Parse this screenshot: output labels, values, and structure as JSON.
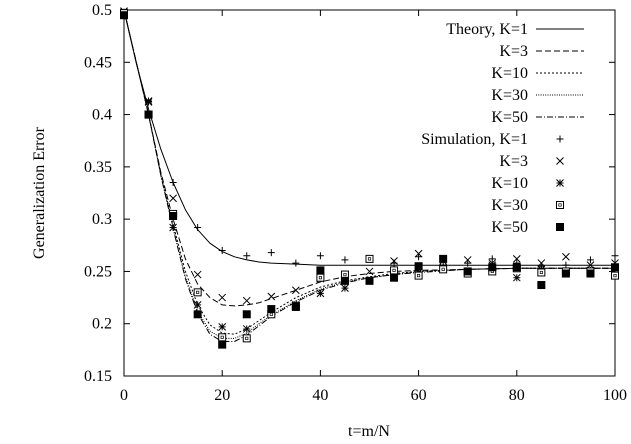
{
  "chart_data": {
    "type": "line",
    "xlabel": "t=m/N",
    "ylabel": "Generalization Error",
    "xlim": [
      0,
      100
    ],
    "ylim": [
      0.15,
      0.5
    ],
    "xticks": [
      0,
      20,
      40,
      60,
      80,
      100
    ],
    "yticks": [
      0.15,
      0.2,
      0.25,
      0.3,
      0.35,
      0.4,
      0.45,
      0.5
    ],
    "xtick_labels": [
      "0",
      "20",
      "40",
      "60",
      "80",
      "100"
    ],
    "ytick_labels": [
      "0.15",
      "0.2",
      "0.25",
      "0.3",
      "0.35",
      "0.4",
      "0.45",
      "0.5"
    ],
    "grid": false,
    "legend_position": "top-right",
    "theory": [
      {
        "name": "Theory, K=1",
        "dash": "solid",
        "x": [
          0,
          2.5,
          5,
          7.5,
          10,
          12.5,
          15,
          17.5,
          20,
          22.5,
          25,
          27.5,
          30,
          35,
          40,
          45,
          50,
          60,
          70,
          80,
          90,
          100
        ],
        "y": [
          0.5,
          0.449,
          0.405,
          0.367,
          0.335,
          0.309,
          0.29,
          0.277,
          0.269,
          0.264,
          0.261,
          0.259,
          0.258,
          0.257,
          0.256,
          0.256,
          0.256,
          0.256,
          0.256,
          0.256,
          0.256,
          0.256
        ]
      },
      {
        "name": "K=3",
        "dash": "dashed",
        "x": [
          0,
          2.5,
          5,
          7.5,
          10,
          12.5,
          15,
          17.5,
          20,
          22.5,
          25,
          27.5,
          30,
          35,
          40,
          45,
          50,
          55,
          60,
          70,
          80,
          90,
          100
        ],
        "y": [
          0.5,
          0.45,
          0.4,
          0.345,
          0.3,
          0.262,
          0.238,
          0.225,
          0.218,
          0.217,
          0.218,
          0.22,
          0.224,
          0.232,
          0.24,
          0.245,
          0.248,
          0.25,
          0.251,
          0.252,
          0.253,
          0.253,
          0.253
        ]
      },
      {
        "name": "K=10",
        "dash": "dotted",
        "x": [
          0,
          2.5,
          5,
          7.5,
          10,
          12.5,
          15,
          17.5,
          20,
          22.5,
          25,
          27.5,
          30,
          35,
          40,
          45,
          50,
          55,
          60,
          70,
          80,
          90,
          100
        ],
        "y": [
          0.5,
          0.45,
          0.4,
          0.343,
          0.295,
          0.25,
          0.218,
          0.199,
          0.191,
          0.19,
          0.195,
          0.203,
          0.211,
          0.225,
          0.235,
          0.241,
          0.245,
          0.248,
          0.25,
          0.252,
          0.253,
          0.253,
          0.253
        ]
      },
      {
        "name": "K=30",
        "dash": "fine",
        "x": [
          0,
          2.5,
          5,
          7.5,
          10,
          12.5,
          15,
          17.5,
          20,
          22.5,
          25,
          27.5,
          30,
          35,
          40,
          45,
          50,
          55,
          60,
          70,
          80,
          90,
          100
        ],
        "y": [
          0.5,
          0.45,
          0.4,
          0.342,
          0.292,
          0.245,
          0.212,
          0.193,
          0.186,
          0.186,
          0.191,
          0.2,
          0.208,
          0.222,
          0.233,
          0.24,
          0.244,
          0.247,
          0.25,
          0.252,
          0.253,
          0.253,
          0.253
        ]
      },
      {
        "name": "K=50",
        "dash": "dashdot",
        "x": [
          0,
          2.5,
          5,
          7.5,
          10,
          12.5,
          15,
          17.5,
          20,
          22.5,
          25,
          27.5,
          30,
          35,
          40,
          45,
          50,
          55,
          60,
          70,
          80,
          90,
          100
        ],
        "y": [
          0.5,
          0.45,
          0.4,
          0.342,
          0.291,
          0.243,
          0.21,
          0.19,
          0.183,
          0.183,
          0.189,
          0.198,
          0.207,
          0.221,
          0.232,
          0.239,
          0.244,
          0.247,
          0.249,
          0.252,
          0.253,
          0.253,
          0.253
        ]
      }
    ],
    "simulation": [
      {
        "name": "Simulation, K=1",
        "marker": "plus",
        "x": [
          0,
          5,
          10,
          15,
          20,
          25,
          30,
          35,
          40,
          45,
          50,
          55,
          60,
          65,
          70,
          75,
          80,
          85,
          90,
          95,
          100
        ],
        "y": [
          0.497,
          0.413,
          0.335,
          0.292,
          0.27,
          0.265,
          0.268,
          0.258,
          0.265,
          0.261,
          0.262,
          0.258,
          0.264,
          0.256,
          0.258,
          0.262,
          0.258,
          0.255,
          0.256,
          0.261,
          0.265
        ]
      },
      {
        "name": "K=3",
        "marker": "cross",
        "x": [
          0,
          5,
          10,
          15,
          20,
          25,
          30,
          35,
          40,
          45,
          50,
          55,
          60,
          65,
          70,
          75,
          80,
          85,
          90,
          95,
          100
        ],
        "y": [
          0.499,
          0.413,
          0.32,
          0.247,
          0.225,
          0.222,
          0.226,
          0.232,
          0.243,
          0.246,
          0.25,
          0.26,
          0.267,
          0.26,
          0.261,
          0.258,
          0.262,
          0.258,
          0.264,
          0.256,
          0.258
        ]
      },
      {
        "name": "K=10",
        "marker": "star",
        "x": [
          0,
          5,
          10,
          15,
          20,
          25,
          30,
          35,
          40,
          45,
          50,
          55,
          60,
          65,
          70,
          75,
          80,
          85,
          90,
          95,
          100
        ],
        "y": [
          0.498,
          0.412,
          0.292,
          0.218,
          0.197,
          0.195,
          0.212,
          0.218,
          0.229,
          0.234,
          0.241,
          0.248,
          0.249,
          0.254,
          0.249,
          0.256,
          0.244,
          0.252,
          0.25,
          0.251,
          0.253
        ]
      },
      {
        "name": "K=30",
        "marker": "square-open",
        "x": [
          0,
          5,
          10,
          15,
          20,
          25,
          30,
          35,
          40,
          45,
          50,
          55,
          60,
          65,
          70,
          75,
          80,
          85,
          90,
          95,
          100
        ],
        "y": [
          0.497,
          0.4,
          0.305,
          0.23,
          0.187,
          0.186,
          0.209,
          0.217,
          0.244,
          0.247,
          0.262,
          0.251,
          0.246,
          0.252,
          0.248,
          0.25,
          0.253,
          0.249,
          0.25,
          0.25,
          0.246
        ]
      },
      {
        "name": "K=50",
        "marker": "square-filled",
        "x": [
          0,
          5,
          10,
          15,
          20,
          25,
          30,
          35,
          40,
          45,
          50,
          55,
          60,
          65,
          70,
          75,
          80,
          85,
          90,
          95,
          100
        ],
        "y": [
          0.495,
          0.4,
          0.303,
          0.209,
          0.18,
          0.209,
          0.214,
          0.216,
          0.251,
          0.241,
          0.241,
          0.244,
          0.255,
          0.262,
          0.25,
          0.254,
          0.254,
          0.237,
          0.248,
          0.248,
          0.254
        ]
      }
    ]
  }
}
